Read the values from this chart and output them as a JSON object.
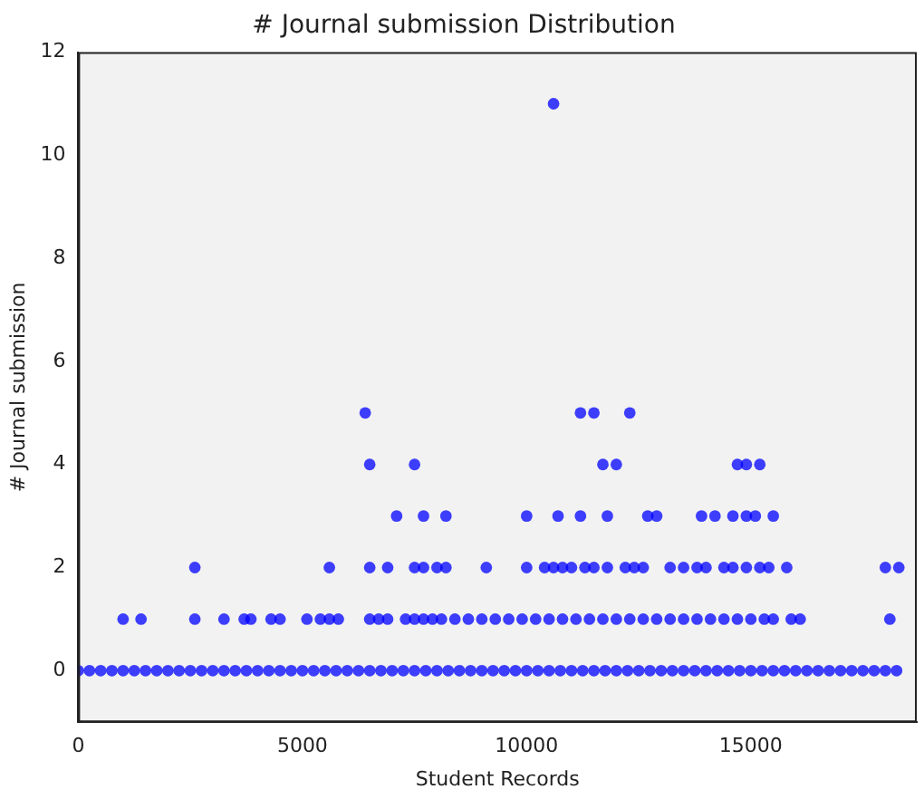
{
  "chart_data": {
    "type": "scatter",
    "title": "# Journal submission Distribution",
    "xlabel": "Student Records",
    "ylabel": "# Journal submission",
    "xlim": [
      0,
      18700
    ],
    "ylim": [
      -1,
      12
    ],
    "xticks": [
      0,
      5000,
      10000,
      15000
    ],
    "yticks": [
      0,
      2,
      4,
      6,
      8,
      10,
      12
    ],
    "grid": false,
    "legend": false,
    "marker": "circle",
    "series": [
      {
        "color": "#0000ff",
        "x": [
          0,
          250,
          500,
          750,
          1000,
          1250,
          1500,
          1750,
          2000,
          2250,
          2500,
          2750,
          3000,
          3250,
          3500,
          3750,
          4000,
          4250,
          4500,
          4750,
          5000,
          5250,
          5500,
          5750,
          6000,
          6250,
          6500,
          6750,
          7000,
          7250,
          7500,
          7750,
          8000,
          8250,
          8500,
          8750,
          9000,
          9250,
          9500,
          9750,
          10000,
          10250,
          10500,
          10750,
          11000,
          11250,
          11500,
          11750,
          12000,
          12250,
          12500,
          12750,
          13000,
          13250,
          13500,
          13750,
          14000,
          14250,
          14500,
          14750,
          15000,
          15250,
          15500,
          15750,
          16000,
          16250,
          16500,
          16750,
          17000,
          17250,
          17500,
          17750,
          18000,
          18250
        ],
        "values": [
          0,
          0,
          0,
          0,
          0,
          0,
          0,
          0,
          0,
          0,
          0,
          0,
          0,
          0,
          0,
          0,
          0,
          0,
          0,
          0,
          0,
          0,
          0,
          0,
          0,
          0,
          0,
          0,
          0,
          0,
          0,
          0,
          0,
          0,
          0,
          0,
          0,
          0,
          0,
          0,
          0,
          0,
          0,
          0,
          0,
          0,
          0,
          0,
          0,
          0,
          0,
          0,
          0,
          0,
          0,
          0,
          0,
          0,
          0,
          0,
          0,
          0,
          0,
          0,
          0,
          0,
          0,
          0,
          0,
          0,
          0,
          0,
          0,
          0
        ]
      },
      {
        "color": "#0000ff",
        "x": [
          1000,
          1400,
          2600,
          3250,
          3700,
          3850,
          4300,
          4500,
          5100,
          5400,
          5600,
          5800,
          6500,
          6700,
          6900,
          7300,
          7500,
          7700,
          7900,
          8100,
          8400,
          8700,
          9000,
          9300,
          9600,
          9900,
          10200,
          10500,
          10800,
          11100,
          11400,
          11700,
          12000,
          12300,
          12600,
          12900,
          13200,
          13500,
          13800,
          14100,
          14400,
          14700,
          15000,
          15300,
          15500,
          15900,
          16100,
          18100
        ],
        "values": [
          1,
          1,
          1,
          1,
          1,
          1,
          1,
          1,
          1,
          1,
          1,
          1,
          1,
          1,
          1,
          1,
          1,
          1,
          1,
          1,
          1,
          1,
          1,
          1,
          1,
          1,
          1,
          1,
          1,
          1,
          1,
          1,
          1,
          1,
          1,
          1,
          1,
          1,
          1,
          1,
          1,
          1,
          1,
          1,
          1,
          1,
          1,
          1
        ]
      },
      {
        "color": "#0000ff",
        "x": [
          2600,
          5600,
          6500,
          6900,
          7500,
          7700,
          8000,
          8200,
          9100,
          10000,
          10400,
          10600,
          10800,
          11000,
          11300,
          11500,
          11800,
          12200,
          12400,
          12600,
          13200,
          13500,
          13800,
          14000,
          14400,
          14600,
          14900,
          15200,
          15400,
          15800,
          18000,
          18300
        ],
        "values": [
          2,
          2,
          2,
          2,
          2,
          2,
          2,
          2,
          2,
          2,
          2,
          2,
          2,
          2,
          2,
          2,
          2,
          2,
          2,
          2,
          2,
          2,
          2,
          2,
          2,
          2,
          2,
          2,
          2,
          2,
          2,
          2
        ]
      },
      {
        "color": "#0000ff",
        "x": [
          7100,
          7700,
          8200,
          10000,
          10700,
          11200,
          11800,
          12700,
          12900,
          13900,
          14200,
          14600,
          14900,
          15100,
          15500
        ],
        "values": [
          3,
          3,
          3,
          3,
          3,
          3,
          3,
          3,
          3,
          3,
          3,
          3,
          3,
          3,
          3
        ]
      },
      {
        "color": "#0000ff",
        "x": [
          6500,
          7500,
          11700,
          12000,
          14700,
          14900,
          15200
        ],
        "values": [
          4,
          4,
          4,
          4,
          4,
          4,
          4
        ]
      },
      {
        "color": "#0000ff",
        "x": [
          6400,
          11200,
          11500,
          12300
        ],
        "values": [
          5,
          5,
          5,
          5
        ]
      },
      {
        "color": "#0000ff",
        "x": [
          10600
        ],
        "values": [
          11
        ]
      }
    ]
  }
}
